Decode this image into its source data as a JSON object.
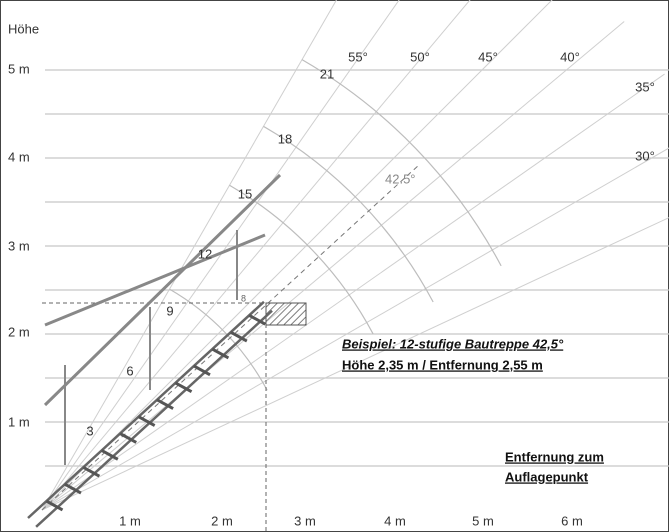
{
  "y_axis": {
    "title": "Höhe",
    "labels": [
      "1 m",
      "2 m",
      "3 m",
      "4 m",
      "5 m"
    ]
  },
  "x_axis": {
    "labels": [
      "1 m",
      "2 m",
      "3 m",
      "4 m",
      "5 m",
      "6 m"
    ]
  },
  "angles": [
    "55°",
    "50°",
    "45°",
    "40°",
    "35°",
    "30°"
  ],
  "example_angle": "42.5°",
  "steps": [
    "3",
    "6",
    "9",
    "12",
    "15",
    "18",
    "21"
  ],
  "marker": "8",
  "example": {
    "title": "Beispiel: 12-stufige Bautreppe 42,5°",
    "detail": "Höhe 2,35 m / Entfernung 2,55 m"
  },
  "distance_note": [
    "Entfernung zum",
    "Auflagepunkt"
  ]
}
